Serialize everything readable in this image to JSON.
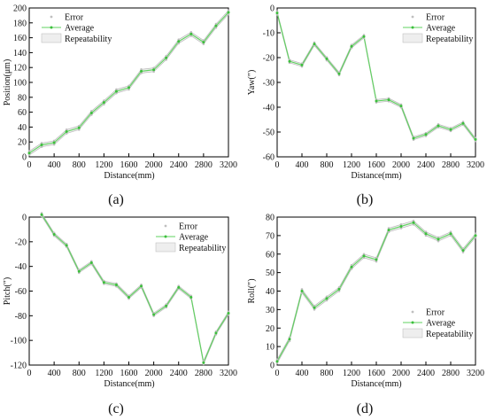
{
  "colors": {
    "average": "#5fd35f",
    "average_marker": "#3cbf3c",
    "band_fill": "#eeeeee",
    "band_edge": "#b8b8b8",
    "error_marker": "#bfbfbf",
    "axis": "#000000"
  },
  "chart_data": [
    {
      "type": "line",
      "panel_label": "(a)",
      "xlabel": "Distance(mm)",
      "ylabel": "Position(μm)",
      "xlim": [
        0,
        3200
      ],
      "ylim": [
        0,
        200
      ],
      "xticks": [
        "0",
        "400",
        "800",
        "1200",
        "1600",
        "2000",
        "2400",
        "2800",
        "3200"
      ],
      "yticks": [
        "0",
        "20",
        "40",
        "60",
        "80",
        "100",
        "120",
        "140",
        "160",
        "180",
        "200"
      ],
      "legend_position": "top-left",
      "legend": [
        "Error",
        "Average",
        "Repeatability"
      ],
      "x": [
        0,
        200,
        400,
        600,
        800,
        1000,
        1200,
        1400,
        1600,
        1800,
        2000,
        2200,
        2400,
        2600,
        2800,
        3000,
        3200
      ],
      "series": [
        {
          "name": "Average",
          "values": [
            5,
            16,
            19,
            34,
            39,
            59,
            73,
            88,
            93,
            115,
            117,
            133,
            155,
            165,
            154,
            176,
            194
          ]
        }
      ],
      "band_halfwidth": 2.5
    },
    {
      "type": "line",
      "panel_label": "(b)",
      "xlabel": "Distance(mm)",
      "ylabel": "Yaw(″)",
      "xlim": [
        0,
        3200
      ],
      "ylim": [
        -60,
        0
      ],
      "xticks": [
        "0",
        "400",
        "800",
        "1200",
        "1600",
        "2000",
        "2400",
        "2800",
        "3200"
      ],
      "yticks": [
        "-60",
        "-50",
        "-40",
        "-30",
        "-20",
        "-10",
        "0"
      ],
      "legend_position": "top-right",
      "legend": [
        "Error",
        "Average",
        "Repeatability"
      ],
      "x": [
        0,
        200,
        400,
        600,
        800,
        1000,
        1200,
        1400,
        1600,
        1800,
        2000,
        2200,
        2400,
        2600,
        2800,
        3000,
        3200
      ],
      "series": [
        {
          "name": "Average",
          "values": [
            -2,
            -21.5,
            -23,
            -14.5,
            -20.5,
            -26.5,
            -15.5,
            -11.5,
            -37.5,
            -37,
            -39.5,
            -52.5,
            -51,
            -47.5,
            -49,
            -46.5,
            -53
          ]
        }
      ],
      "band_halfwidth": 0.6
    },
    {
      "type": "line",
      "panel_label": "(c)",
      "xlabel": "Distance(mm)",
      "ylabel": "Pitch(″)",
      "xlim": [
        0,
        3200
      ],
      "ylim": [
        -120,
        0
      ],
      "xticks": [
        "0",
        "400",
        "800",
        "1200",
        "1600",
        "2000",
        "2400",
        "2800",
        "3200"
      ],
      "yticks": [
        "-120",
        "-100",
        "-80",
        "-60",
        "-40",
        "-20",
        "0"
      ],
      "legend_position": "top-right",
      "legend": [
        "Error",
        "Average",
        "Repeatability"
      ],
      "x": [
        200,
        400,
        600,
        800,
        1000,
        1200,
        1400,
        1600,
        1800,
        2000,
        2200,
        2400,
        2600,
        2800,
        3000,
        3200
      ],
      "series": [
        {
          "name": "Average",
          "values": [
            2,
            -14,
            -23,
            -44,
            -37,
            -53,
            -55,
            -65,
            -56,
            -79,
            -72,
            -57,
            -65,
            -118,
            -94,
            -78
          ]
        }
      ],
      "band_halfwidth": 1.2
    },
    {
      "type": "line",
      "panel_label": "(d)",
      "xlabel": "Distance(mm)",
      "ylabel": "Roll(″)",
      "xlim": [
        0,
        3200
      ],
      "ylim": [
        0,
        80
      ],
      "xticks": [
        "0",
        "400",
        "800",
        "1200",
        "1600",
        "2000",
        "2400",
        "2800",
        "3200"
      ],
      "yticks": [
        "0",
        "10",
        "20",
        "30",
        "40",
        "50",
        "60",
        "70",
        "80"
      ],
      "legend_position": "bottom-right",
      "legend": [
        "Error",
        "Average",
        "Repeatability"
      ],
      "x": [
        0,
        200,
        400,
        600,
        800,
        1000,
        1200,
        1400,
        1600,
        1800,
        2000,
        2200,
        2400,
        2600,
        2800,
        3000,
        3200
      ],
      "series": [
        {
          "name": "Average",
          "values": [
            2,
            14,
            40,
            31,
            36,
            41,
            53,
            59,
            57,
            73,
            75,
            77,
            71,
            68,
            71,
            62,
            70
          ]
        }
      ],
      "band_halfwidth": 1.0
    }
  ]
}
